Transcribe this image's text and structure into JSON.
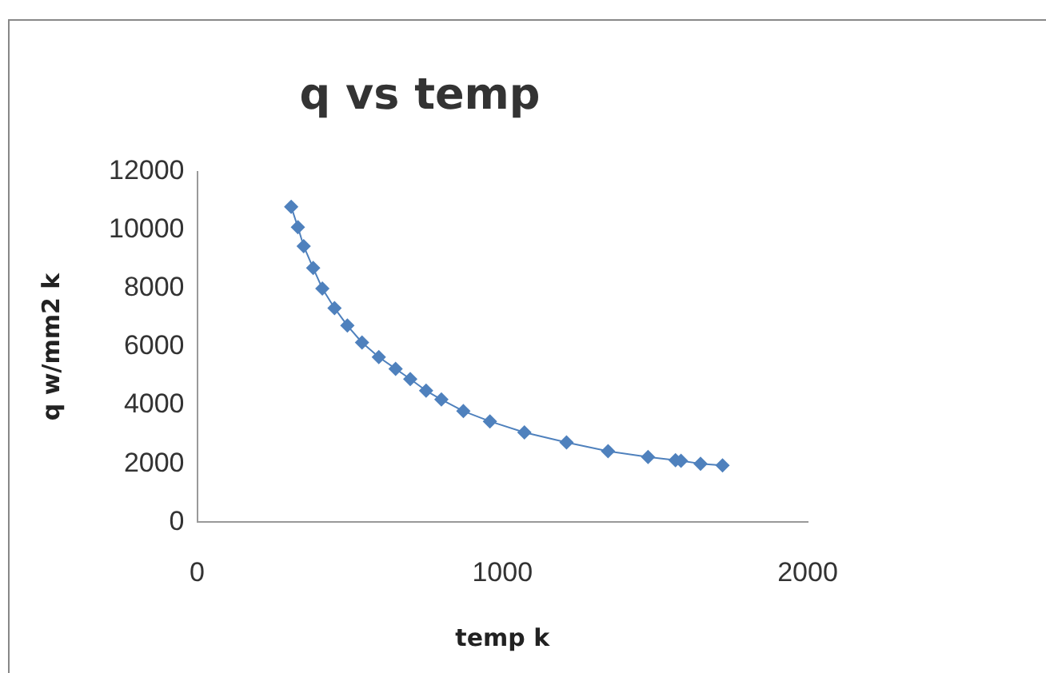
{
  "chart_data": {
    "type": "line",
    "title": "q vs temp",
    "xlabel": "temp k",
    "ylabel": "q w/mm2 k",
    "series": [
      {
        "color": "#4f81bd",
        "x": [
          308,
          330,
          349,
          380,
          410,
          450,
          492,
          540,
          595,
          650,
          698,
          750,
          800,
          872,
          959,
          1072,
          1210,
          1346,
          1477,
          1567,
          1585,
          1649,
          1721
        ],
        "values": [
          10800,
          10100,
          9450,
          8700,
          8000,
          7330,
          6730,
          6150,
          5650,
          5250,
          4900,
          4500,
          4200,
          3800,
          3450,
          3070,
          2730,
          2430,
          2230,
          2120,
          2100,
          2000,
          1940
        ]
      }
    ],
    "xlim": [
      0,
      2000
    ],
    "xticks": [
      0,
      1000,
      2000
    ],
    "ylim": [
      0,
      12000
    ],
    "yticks": [
      0,
      2000,
      4000,
      6000,
      8000,
      10000,
      12000
    ],
    "grid": false,
    "legend": false,
    "marker": "diamond",
    "line_style": "solid"
  }
}
